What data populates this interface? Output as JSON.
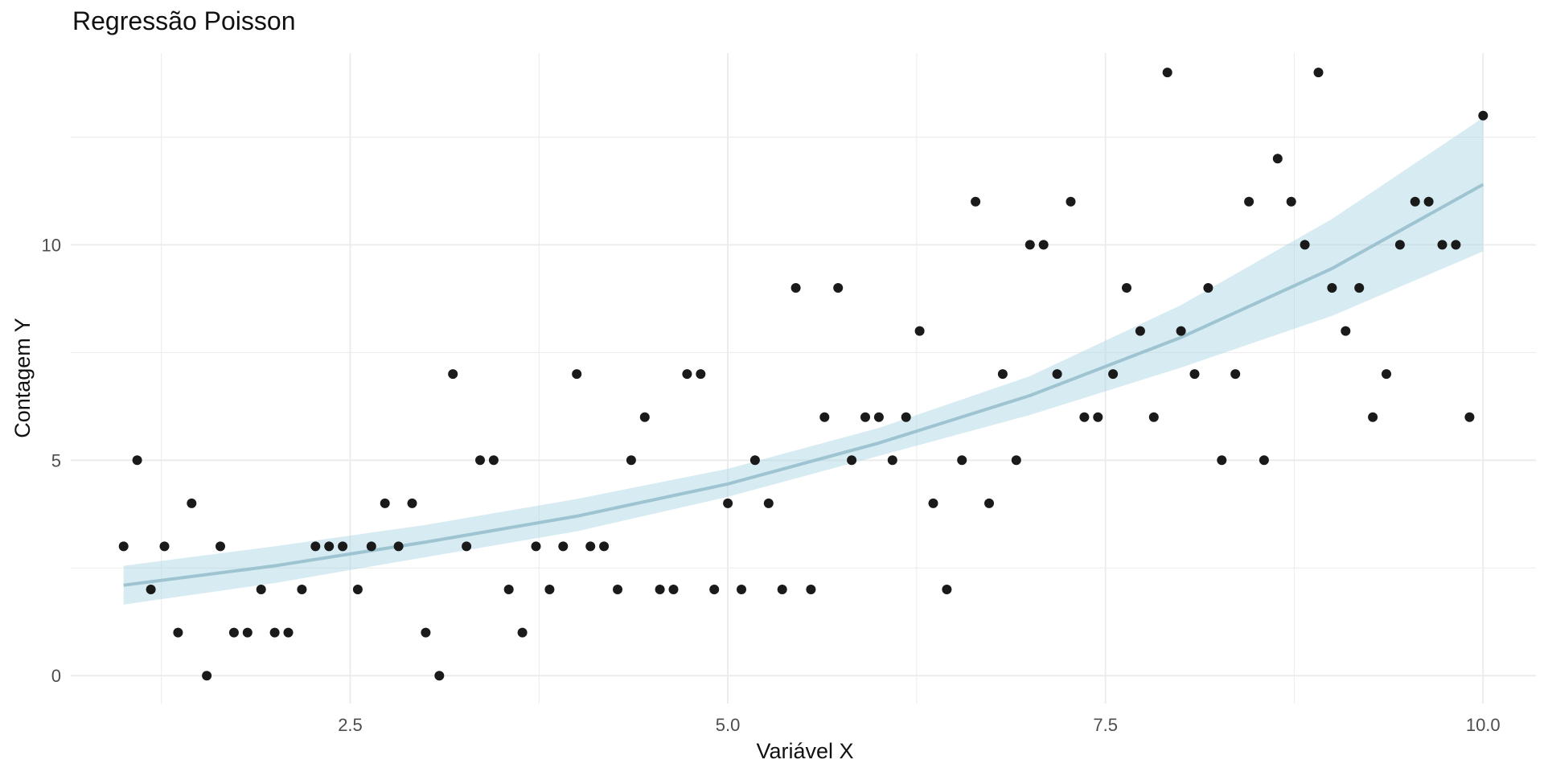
{
  "chart_data": {
    "type": "scatter",
    "title": "Regressão Poisson",
    "xlabel": "Variável X",
    "ylabel": "Contagem Y",
    "xlim": [
      0.65,
      10.35
    ],
    "ylim": [
      -0.65,
      14.45
    ],
    "x_ticks": [
      {
        "value": 2.5,
        "label": "2.5"
      },
      {
        "value": 5.0,
        "label": "5.0"
      },
      {
        "value": 7.5,
        "label": "7.5"
      },
      {
        "value": 10.0,
        "label": "10.0"
      }
    ],
    "y_ticks": [
      {
        "value": 0,
        "label": "0"
      },
      {
        "value": 5,
        "label": "5"
      },
      {
        "value": 10,
        "label": "10"
      }
    ],
    "grid": true,
    "colors": {
      "points": "#1a1a1a",
      "fit_line": "#9ec3d1",
      "ribbon": "#add8e6",
      "grid": "#ebebeb"
    },
    "points": [
      {
        "x": 1.0,
        "y": 3
      },
      {
        "x": 1.09,
        "y": 5
      },
      {
        "x": 1.18,
        "y": 2
      },
      {
        "x": 1.27,
        "y": 3
      },
      {
        "x": 1.36,
        "y": 1
      },
      {
        "x": 1.45,
        "y": 4
      },
      {
        "x": 1.55,
        "y": 0
      },
      {
        "x": 1.64,
        "y": 3
      },
      {
        "x": 1.73,
        "y": 1
      },
      {
        "x": 1.82,
        "y": 1
      },
      {
        "x": 1.91,
        "y": 2
      },
      {
        "x": 2.0,
        "y": 1
      },
      {
        "x": 2.09,
        "y": 1
      },
      {
        "x": 2.18,
        "y": 2
      },
      {
        "x": 2.27,
        "y": 3
      },
      {
        "x": 2.36,
        "y": 3
      },
      {
        "x": 2.45,
        "y": 3
      },
      {
        "x": 2.55,
        "y": 2
      },
      {
        "x": 2.64,
        "y": 3
      },
      {
        "x": 2.73,
        "y": 4
      },
      {
        "x": 2.82,
        "y": 3
      },
      {
        "x": 2.91,
        "y": 4
      },
      {
        "x": 3.0,
        "y": 1
      },
      {
        "x": 3.09,
        "y": 0
      },
      {
        "x": 3.18,
        "y": 7
      },
      {
        "x": 3.27,
        "y": 3
      },
      {
        "x": 3.36,
        "y": 5
      },
      {
        "x": 3.45,
        "y": 5
      },
      {
        "x": 3.55,
        "y": 2
      },
      {
        "x": 3.64,
        "y": 1
      },
      {
        "x": 3.73,
        "y": 3
      },
      {
        "x": 3.82,
        "y": 2
      },
      {
        "x": 3.91,
        "y": 3
      },
      {
        "x": 4.0,
        "y": 7
      },
      {
        "x": 4.09,
        "y": 3
      },
      {
        "x": 4.18,
        "y": 3
      },
      {
        "x": 4.27,
        "y": 2
      },
      {
        "x": 4.36,
        "y": 5
      },
      {
        "x": 4.45,
        "y": 6
      },
      {
        "x": 4.55,
        "y": 2
      },
      {
        "x": 4.64,
        "y": 2
      },
      {
        "x": 4.73,
        "y": 7
      },
      {
        "x": 4.82,
        "y": 7
      },
      {
        "x": 4.91,
        "y": 2
      },
      {
        "x": 5.0,
        "y": 4
      },
      {
        "x": 5.09,
        "y": 2
      },
      {
        "x": 5.18,
        "y": 5
      },
      {
        "x": 5.27,
        "y": 4
      },
      {
        "x": 5.36,
        "y": 2
      },
      {
        "x": 5.45,
        "y": 9
      },
      {
        "x": 5.55,
        "y": 2
      },
      {
        "x": 5.64,
        "y": 6
      },
      {
        "x": 5.73,
        "y": 9
      },
      {
        "x": 5.82,
        "y": 5
      },
      {
        "x": 5.91,
        "y": 6
      },
      {
        "x": 6.0,
        "y": 6
      },
      {
        "x": 6.09,
        "y": 5
      },
      {
        "x": 6.18,
        "y": 6
      },
      {
        "x": 6.27,
        "y": 8
      },
      {
        "x": 6.36,
        "y": 4
      },
      {
        "x": 6.45,
        "y": 2
      },
      {
        "x": 6.55,
        "y": 5
      },
      {
        "x": 6.64,
        "y": 11
      },
      {
        "x": 6.73,
        "y": 4
      },
      {
        "x": 6.82,
        "y": 7
      },
      {
        "x": 6.91,
        "y": 5
      },
      {
        "x": 7.0,
        "y": 10
      },
      {
        "x": 7.09,
        "y": 10
      },
      {
        "x": 7.18,
        "y": 7
      },
      {
        "x": 7.27,
        "y": 11
      },
      {
        "x": 7.36,
        "y": 6
      },
      {
        "x": 7.45,
        "y": 6
      },
      {
        "x": 7.55,
        "y": 7
      },
      {
        "x": 7.64,
        "y": 9
      },
      {
        "x": 7.73,
        "y": 8
      },
      {
        "x": 7.82,
        "y": 6
      },
      {
        "x": 7.91,
        "y": 14
      },
      {
        "x": 8.0,
        "y": 8
      },
      {
        "x": 8.09,
        "y": 7
      },
      {
        "x": 8.18,
        "y": 9
      },
      {
        "x": 8.27,
        "y": 5
      },
      {
        "x": 8.36,
        "y": 7
      },
      {
        "x": 8.45,
        "y": 11
      },
      {
        "x": 8.55,
        "y": 5
      },
      {
        "x": 8.64,
        "y": 12
      },
      {
        "x": 8.73,
        "y": 11
      },
      {
        "x": 8.82,
        "y": 10
      },
      {
        "x": 8.91,
        "y": 14
      },
      {
        "x": 9.0,
        "y": 9
      },
      {
        "x": 9.09,
        "y": 8
      },
      {
        "x": 9.18,
        "y": 9
      },
      {
        "x": 9.27,
        "y": 6
      },
      {
        "x": 9.36,
        "y": 7
      },
      {
        "x": 9.45,
        "y": 10
      },
      {
        "x": 9.55,
        "y": 11
      },
      {
        "x": 9.64,
        "y": 11
      },
      {
        "x": 9.73,
        "y": 10
      },
      {
        "x": 9.82,
        "y": 10
      },
      {
        "x": 9.91,
        "y": 6
      },
      {
        "x": 10.0,
        "y": 13
      }
    ],
    "fit": {
      "x": [
        1.0,
        2.0,
        3.0,
        4.0,
        5.0,
        6.0,
        7.0,
        8.0,
        9.0,
        10.0
      ],
      "y": [
        2.1,
        2.55,
        3.1,
        3.7,
        4.45,
        5.4,
        6.5,
        7.85,
        9.45,
        11.4
      ],
      "lower": [
        1.65,
        2.15,
        2.75,
        3.35,
        4.15,
        5.1,
        6.05,
        7.15,
        8.35,
        9.85
      ],
      "upper": [
        2.55,
        3.0,
        3.5,
        4.1,
        4.8,
        5.75,
        6.95,
        8.6,
        10.6,
        12.95
      ]
    }
  }
}
